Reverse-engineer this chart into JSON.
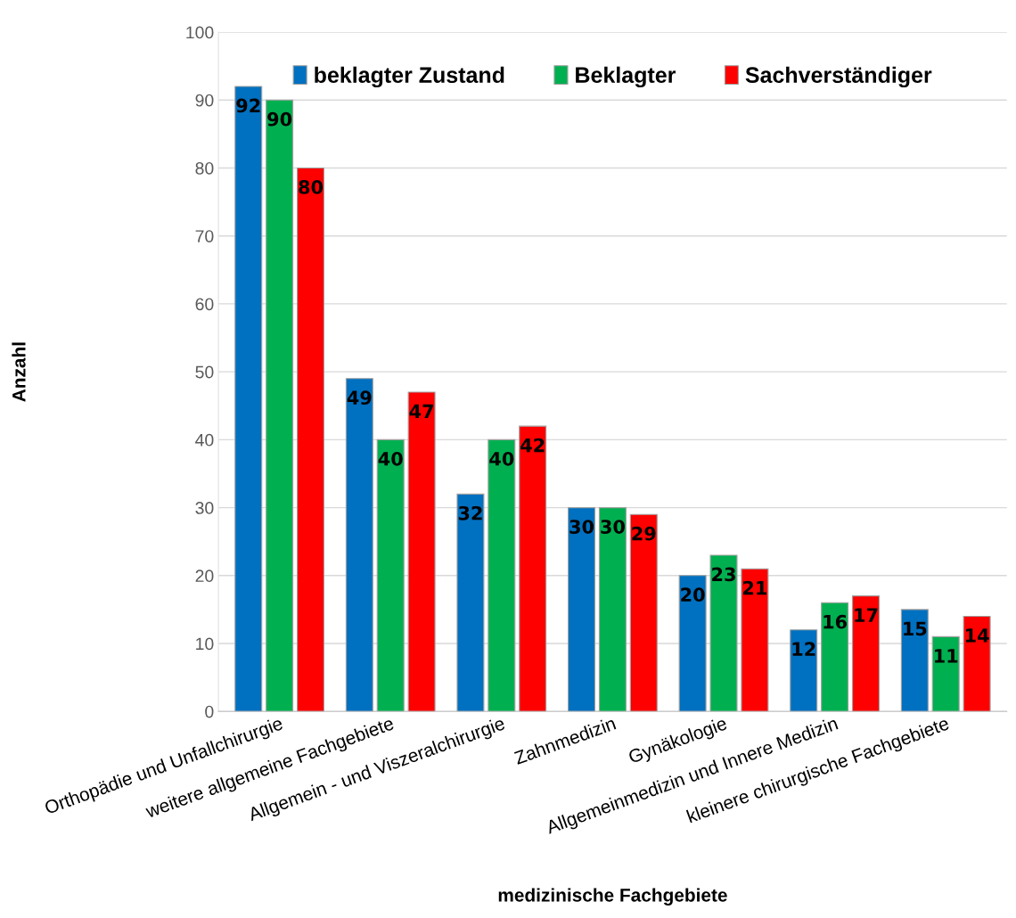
{
  "chart_data": {
    "type": "bar",
    "xlabel": "medizinische Fachgebiete",
    "ylabel": "Anzahl",
    "categories": [
      "Orthopädie und Unfallchirurgie",
      "weitere allgemeine Fachgebiete",
      "Allgemein - und Viszeralchirurgie",
      "Zahnmedizin",
      "Gynäkologie",
      "Allgemeinmedizin und Innere Medizin",
      "kleinere chirurgische Fachgebiete"
    ],
    "series": [
      {
        "name": "beklagter Zustand",
        "color": "#0070c0",
        "values": [
          92,
          49,
          32,
          30,
          20,
          12,
          15
        ]
      },
      {
        "name": "Beklagter",
        "color": "#00b050",
        "values": [
          90,
          40,
          40,
          30,
          23,
          16,
          11
        ]
      },
      {
        "name": "Sachverständiger",
        "color": "#ff0000",
        "values": [
          80,
          47,
          42,
          29,
          21,
          17,
          14
        ]
      }
    ],
    "ylim": [
      0,
      100
    ],
    "yticks": [
      0,
      10,
      20,
      30,
      40,
      50,
      60,
      70,
      80,
      90,
      100
    ],
    "grid": "y",
    "legend": "top",
    "data_labels": true
  }
}
